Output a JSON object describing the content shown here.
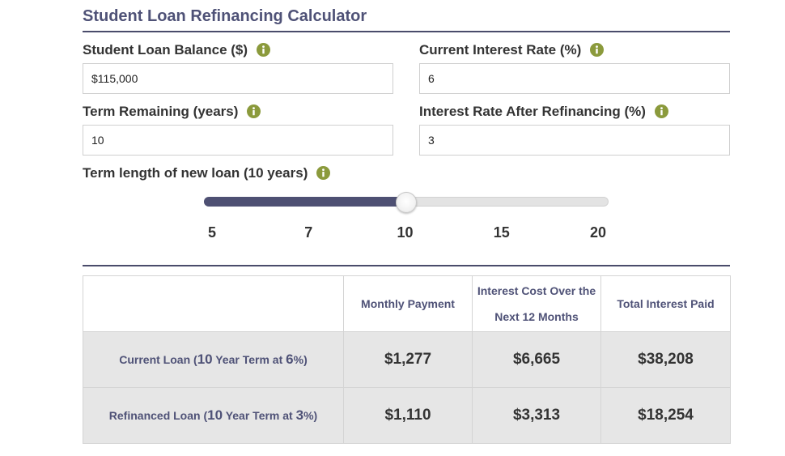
{
  "title": "Student Loan Refinancing Calculator",
  "colors": {
    "accent": "#4f5277",
    "info_icon": "#8b9a3c",
    "slider_fill": "#4e5073",
    "row_bg": "#e6e6e6"
  },
  "fields": {
    "balance": {
      "label": "Student Loan Balance ($)",
      "value": "$115,000",
      "icon": "info-icon"
    },
    "current_rate": {
      "label": "Current Interest Rate (%)",
      "value": "6",
      "icon": "info-icon"
    },
    "term_remaining": {
      "label": "Term Remaining (years)",
      "value": "10",
      "icon": "info-icon"
    },
    "new_rate": {
      "label": "Interest Rate After Refinancing (%)",
      "value": "3",
      "icon": "info-icon"
    }
  },
  "slider": {
    "label": "Term length of new loan (10 years)",
    "ticks": [
      "5",
      "7",
      "10",
      "15",
      "20"
    ],
    "selected": "10",
    "selected_fraction": 0.5
  },
  "table": {
    "headers": [
      "",
      "Monthly Payment",
      "Interest Cost Over the Next 12 Months",
      "Total Interest Paid"
    ],
    "rows": [
      {
        "label_pre": "Current Loan (",
        "label_num": "10",
        "label_mid": " Year Term at ",
        "label_rate": "6",
        "label_post": "%)",
        "monthly": "$1,277",
        "interest_12": "$6,665",
        "total_interest": "$38,208"
      },
      {
        "label_pre": "Refinanced Loan (",
        "label_num": "10",
        "label_mid": " Year Term at ",
        "label_rate": "3",
        "label_post": "%)",
        "monthly": "$1,110",
        "interest_12": "$3,313",
        "total_interest": "$18,254"
      }
    ]
  }
}
